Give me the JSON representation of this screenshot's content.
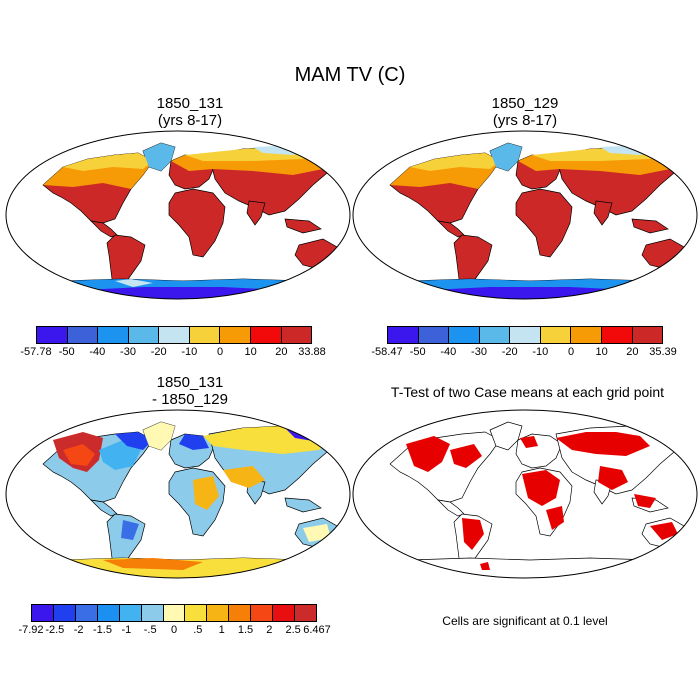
{
  "figure": {
    "title": "MAM TV (C)",
    "panels": [
      {
        "id": "p1",
        "title_line1": "1850_131",
        "title_line2": "(yrs 8-17)"
      },
      {
        "id": "p2",
        "title_line1": "1850_129",
        "title_line2": "(yrs 8-17)"
      },
      {
        "id": "p3",
        "title_line1": "1850_131",
        "title_line2": "- 1850_129"
      },
      {
        "id": "p4",
        "title_line1": "T-Test of two Case means at each grid point",
        "title_line2": ""
      }
    ],
    "colorbars": {
      "cb1": {
        "colors": [
          "#3b17ee",
          "#3c61d9",
          "#1c93ef",
          "#5ab9e9",
          "#c3e4f0",
          "#f7d13a",
          "#f69a05",
          "#f20a0a",
          "#cc2828"
        ],
        "labels": [
          "-57.78",
          "-50",
          "-40",
          "-30",
          "-20",
          "-10",
          "0",
          "10",
          "20",
          "33.88"
        ]
      },
      "cb2": {
        "colors": [
          "#3b17ee",
          "#3c61d9",
          "#1c93ef",
          "#5ab9e9",
          "#c3e4f0",
          "#f7d13a",
          "#f69a05",
          "#f20a0a",
          "#cc2828"
        ],
        "labels": [
          "-58.47",
          "-50",
          "-40",
          "-30",
          "-20",
          "-10",
          "0",
          "10",
          "20",
          "35.39"
        ]
      },
      "cb3": {
        "colors": [
          "#3b17ee",
          "#2040f0",
          "#3a6ee6",
          "#1b90f0",
          "#42b2f0",
          "#8ccbea",
          "#fff9b4",
          "#f9df3c",
          "#f7b415",
          "#f57f07",
          "#f44714",
          "#e70f0f",
          "#cc2b2b"
        ],
        "labels": [
          "-7.92",
          "-2.5",
          "-2",
          "-1.5",
          "-1",
          "-.5",
          "0",
          ".5",
          "1",
          "1.5",
          "2",
          "2.5",
          "6.467"
        ]
      }
    },
    "significance_note": "Cells are significant at 0.1 level",
    "significance_color": "#e60000"
  }
}
